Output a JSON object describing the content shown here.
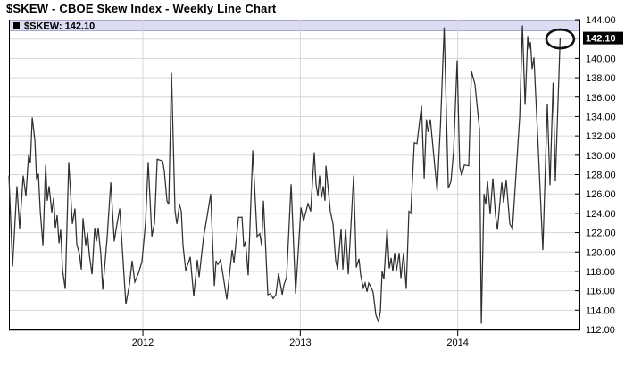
{
  "title": "$SKEW - CBOE Skew Index - Weekly Line Chart",
  "legend": {
    "label": "$SKEW: 142.10",
    "marker_color": "#000000"
  },
  "colors": {
    "background": "#ffffff",
    "line": "#303030",
    "grid": "#d6d6d6",
    "axis": "#000000",
    "legend_bar_bg": "#dcdcf2",
    "legend_bar_border": "#a9a9cc",
    "highlight_bg": "#000000",
    "highlight_text": "#ffffff",
    "annotation": "#111111",
    "label_text": "#000000"
  },
  "chart_data": {
    "type": "line",
    "title": "$SKEW - CBOE Skew Index - Weekly Line Chart",
    "symbol": "$SKEW",
    "frequency": "Weekly",
    "last_value": 142.1,
    "x_axis": {
      "range": [
        2011.149,
        2014.779
      ],
      "tick_years": [
        2012,
        2013,
        2014
      ],
      "labels": [
        "2012",
        "2013",
        "2014"
      ],
      "grid": true
    },
    "y_axis": {
      "range": [
        112,
        144
      ],
      "tick_step": 2,
      "grid_values": [
        142,
        140,
        138,
        136,
        134,
        132,
        130,
        128,
        126,
        124,
        122,
        120,
        118,
        116,
        114
      ],
      "highlight_value": 142.1,
      "ticks": [
        {
          "value": 144,
          "label": "144.00",
          "highlight": false
        },
        {
          "value": 142.1,
          "label": "142.10",
          "highlight": true
        },
        {
          "value": 140,
          "label": "140.00",
          "highlight": false
        },
        {
          "value": 138,
          "label": "138.00",
          "highlight": false
        },
        {
          "value": 136,
          "label": "136.00",
          "highlight": false
        },
        {
          "value": 134,
          "label": "134.00",
          "highlight": false
        },
        {
          "value": 132,
          "label": "132.00",
          "highlight": false
        },
        {
          "value": 130,
          "label": "130.00",
          "highlight": false
        },
        {
          "value": 128,
          "label": "128.00",
          "highlight": false
        },
        {
          "value": 126,
          "label": "126.00",
          "highlight": false
        },
        {
          "value": 124,
          "label": "124.00",
          "highlight": false
        },
        {
          "value": 122,
          "label": "122.00",
          "highlight": false
        },
        {
          "value": 120,
          "label": "120.00",
          "highlight": false
        },
        {
          "value": 118,
          "label": "118.00",
          "highlight": false
        },
        {
          "value": 116,
          "label": "116.00",
          "highlight": false
        },
        {
          "value": 114,
          "label": "114.00",
          "highlight": false
        },
        {
          "value": 112,
          "label": "112.00",
          "highlight": false
        }
      ]
    },
    "annotation": {
      "type": "ellipse",
      "t": 2014.651,
      "value": 142.1
    },
    "series": [
      {
        "name": "$SKEW",
        "points": [
          [
            2011.149,
            127.9
          ],
          [
            2011.172,
            118.5
          ],
          [
            2011.2,
            126.8
          ],
          [
            2011.217,
            122.4
          ],
          [
            2011.24,
            127.9
          ],
          [
            2011.257,
            125.8
          ],
          [
            2011.274,
            130.0
          ],
          [
            2011.285,
            129.2
          ],
          [
            2011.297,
            133.9
          ],
          [
            2011.314,
            131.5
          ],
          [
            2011.325,
            127.4
          ],
          [
            2011.336,
            128.1
          ],
          [
            2011.348,
            124.2
          ],
          [
            2011.365,
            120.7
          ],
          [
            2011.382,
            129.0
          ],
          [
            2011.393,
            125.3
          ],
          [
            2011.404,
            126.8
          ],
          [
            2011.421,
            124.1
          ],
          [
            2011.433,
            125.6
          ],
          [
            2011.444,
            122.5
          ],
          [
            2011.455,
            123.8
          ],
          [
            2011.467,
            120.9
          ],
          [
            2011.478,
            122.3
          ],
          [
            2011.49,
            118.1
          ],
          [
            2011.507,
            116.2
          ],
          [
            2011.529,
            129.3
          ],
          [
            2011.552,
            122.9
          ],
          [
            2011.569,
            124.5
          ],
          [
            2011.58,
            120.8
          ],
          [
            2011.597,
            119.8
          ],
          [
            2011.609,
            118.2
          ],
          [
            2011.62,
            123.5
          ],
          [
            2011.637,
            120.7
          ],
          [
            2011.648,
            122.0
          ],
          [
            2011.66,
            119.7
          ],
          [
            2011.677,
            117.7
          ],
          [
            2011.694,
            122.5
          ],
          [
            2011.705,
            121.1
          ],
          [
            2011.716,
            122.5
          ],
          [
            2011.733,
            119.7
          ],
          [
            2011.745,
            116.1
          ],
          [
            2011.773,
            121.5
          ],
          [
            2011.796,
            127.2
          ],
          [
            2011.818,
            121.1
          ],
          [
            2011.83,
            122.4
          ],
          [
            2011.853,
            124.5
          ],
          [
            2011.892,
            114.6
          ],
          [
            2011.915,
            116.7
          ],
          [
            2011.932,
            119.1
          ],
          [
            2011.949,
            116.9
          ],
          [
            2011.972,
            117.8
          ],
          [
            2011.994,
            119.0
          ],
          [
            2012.017,
            123.0
          ],
          [
            2012.034,
            129.3
          ],
          [
            2012.057,
            121.6
          ],
          [
            2012.074,
            123.0
          ],
          [
            2012.091,
            129.6
          ],
          [
            2012.125,
            129.4
          ],
          [
            2012.136,
            128.4
          ],
          [
            2012.153,
            125.3
          ],
          [
            2012.164,
            124.9
          ],
          [
            2012.182,
            138.5
          ],
          [
            2012.204,
            124.3
          ],
          [
            2012.216,
            122.9
          ],
          [
            2012.233,
            124.9
          ],
          [
            2012.244,
            124.2
          ],
          [
            2012.255,
            120.7
          ],
          [
            2012.272,
            118.1
          ],
          [
            2012.289,
            118.9
          ],
          [
            2012.301,
            119.5
          ],
          [
            2012.323,
            115.4
          ],
          [
            2012.346,
            119.2
          ],
          [
            2012.357,
            117.4
          ],
          [
            2012.386,
            121.6
          ],
          [
            2012.408,
            123.7
          ],
          [
            2012.431,
            126.0
          ],
          [
            2012.454,
            116.5
          ],
          [
            2012.465,
            119.1
          ],
          [
            2012.476,
            118.7
          ],
          [
            2012.493,
            119.2
          ],
          [
            2012.51,
            117.5
          ],
          [
            2012.533,
            115.1
          ],
          [
            2012.567,
            120.2
          ],
          [
            2012.579,
            118.9
          ],
          [
            2012.607,
            123.6
          ],
          [
            2012.63,
            123.6
          ],
          [
            2012.641,
            120.5
          ],
          [
            2012.652,
            121.1
          ],
          [
            2012.669,
            117.6
          ],
          [
            2012.698,
            130.5
          ],
          [
            2012.726,
            121.6
          ],
          [
            2012.743,
            121.9
          ],
          [
            2012.754,
            120.7
          ],
          [
            2012.766,
            125.3
          ],
          [
            2012.794,
            115.6
          ],
          [
            2012.811,
            115.7
          ],
          [
            2012.828,
            115.2
          ],
          [
            2012.845,
            115.6
          ],
          [
            2012.862,
            117.8
          ],
          [
            2012.885,
            115.6
          ],
          [
            2012.896,
            116.6
          ],
          [
            2012.913,
            117.4
          ],
          [
            2012.942,
            127.0
          ],
          [
            2012.97,
            115.7
          ],
          [
            2013.004,
            124.6
          ],
          [
            2013.021,
            123.2
          ],
          [
            2013.049,
            125.0
          ],
          [
            2013.066,
            124.2
          ],
          [
            2013.089,
            130.3
          ],
          [
            2013.1,
            127.0
          ],
          [
            2013.112,
            125.8
          ],
          [
            2013.123,
            127.9
          ],
          [
            2013.134,
            125.6
          ],
          [
            2013.146,
            126.8
          ],
          [
            2013.157,
            125.3
          ],
          [
            2013.163,
            128.9
          ],
          [
            2013.191,
            124.2
          ],
          [
            2013.208,
            122.9
          ],
          [
            2013.225,
            119.1
          ],
          [
            2013.237,
            118.2
          ],
          [
            2013.259,
            122.4
          ],
          [
            2013.27,
            118.2
          ],
          [
            2013.288,
            122.4
          ],
          [
            2013.305,
            117.7
          ],
          [
            2013.339,
            127.9
          ],
          [
            2013.356,
            118.4
          ],
          [
            2013.373,
            119.3
          ],
          [
            2013.384,
            117.6
          ],
          [
            2013.401,
            116.3
          ],
          [
            2013.412,
            116.8
          ],
          [
            2013.424,
            115.9
          ],
          [
            2013.435,
            116.8
          ],
          [
            2013.452,
            116.3
          ],
          [
            2013.463,
            115.8
          ],
          [
            2013.48,
            113.5
          ],
          [
            2013.497,
            112.8
          ],
          [
            2013.509,
            113.9
          ],
          [
            2013.52,
            118.0
          ],
          [
            2013.531,
            117.2
          ],
          [
            2013.551,
            122.4
          ],
          [
            2013.565,
            118.3
          ],
          [
            2013.577,
            119.4
          ],
          [
            2013.588,
            118.0
          ],
          [
            2013.599,
            119.9
          ],
          [
            2013.611,
            118.1
          ],
          [
            2013.628,
            119.9
          ],
          [
            2013.639,
            117.3
          ],
          [
            2013.656,
            119.9
          ],
          [
            2013.673,
            116.2
          ],
          [
            2013.69,
            124.2
          ],
          [
            2013.702,
            124.0
          ],
          [
            2013.724,
            131.3
          ],
          [
            2013.741,
            131.2
          ],
          [
            2013.77,
            135.1
          ],
          [
            2013.787,
            127.6
          ],
          [
            2013.801,
            133.7
          ],
          [
            2013.812,
            132.4
          ],
          [
            2013.826,
            133.7
          ],
          [
            2013.849,
            129.8
          ],
          [
            2013.869,
            126.3
          ],
          [
            2013.891,
            133.2
          ],
          [
            2013.914,
            143.2
          ],
          [
            2013.94,
            126.6
          ],
          [
            2013.957,
            127.3
          ],
          [
            2013.974,
            130.5
          ],
          [
            2013.996,
            139.8
          ],
          [
            2014.013,
            128.8
          ],
          [
            2014.025,
            127.9
          ],
          [
            2014.042,
            129.0
          ],
          [
            2014.07,
            128.9
          ],
          [
            2014.087,
            138.7
          ],
          [
            2014.11,
            137.3
          ],
          [
            2014.138,
            132.7
          ],
          [
            2014.15,
            112.6
          ],
          [
            2014.167,
            126.0
          ],
          [
            2014.178,
            124.9
          ],
          [
            2014.189,
            127.3
          ],
          [
            2014.206,
            123.9
          ],
          [
            2014.223,
            127.6
          ],
          [
            2014.24,
            123.8
          ],
          [
            2014.252,
            122.3
          ],
          [
            2014.28,
            127.2
          ],
          [
            2014.291,
            125.1
          ],
          [
            2014.308,
            127.4
          ],
          [
            2014.331,
            122.9
          ],
          [
            2014.348,
            122.4
          ],
          [
            2014.394,
            134.0
          ],
          [
            2014.411,
            143.4
          ],
          [
            2014.428,
            135.2
          ],
          [
            2014.445,
            142.3
          ],
          [
            2014.453,
            140.9
          ],
          [
            2014.462,
            141.7
          ],
          [
            2014.473,
            138.9
          ],
          [
            2014.484,
            140.1
          ],
          [
            2014.513,
            130.2
          ],
          [
            2014.541,
            120.2
          ],
          [
            2014.569,
            135.3
          ],
          [
            2014.586,
            126.9
          ],
          [
            2014.606,
            137.5
          ],
          [
            2014.62,
            127.3
          ],
          [
            2014.651,
            142.1
          ]
        ]
      }
    ]
  }
}
